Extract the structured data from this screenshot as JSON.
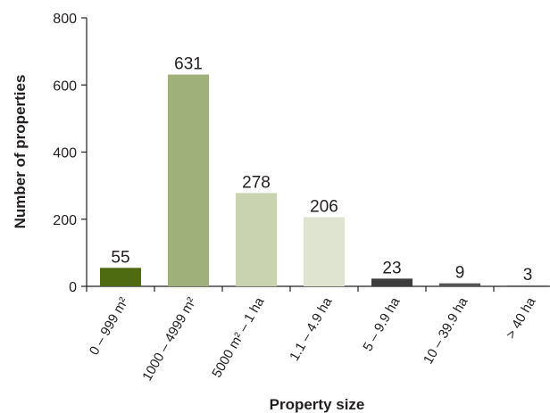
{
  "chart_data": {
    "type": "bar",
    "title": "",
    "xlabel": "Property size",
    "ylabel": "Number of properties",
    "ylim": [
      0,
      800
    ],
    "yticks": [
      0,
      200,
      400,
      600,
      800
    ],
    "grid": false,
    "legend": "none",
    "categories": [
      "0 – 999 m²",
      "1000 – 4999 m²",
      "5000 m² – 1 ha",
      "1.1 – 4.9 ha",
      "5 – 9.9 ha",
      "10 – 39.9 ha",
      "> 40 ha"
    ],
    "values": [
      55,
      631,
      278,
      206,
      23,
      9,
      3
    ],
    "data_labels": [
      "55",
      "631",
      "278",
      "206",
      "23",
      "9",
      "3"
    ],
    "colors": [
      "#4e6b12",
      "#9fb07a",
      "#cad3b0",
      "#dfe4d1",
      "#3c3c3c",
      "#555555",
      "#6a6a6a"
    ]
  }
}
